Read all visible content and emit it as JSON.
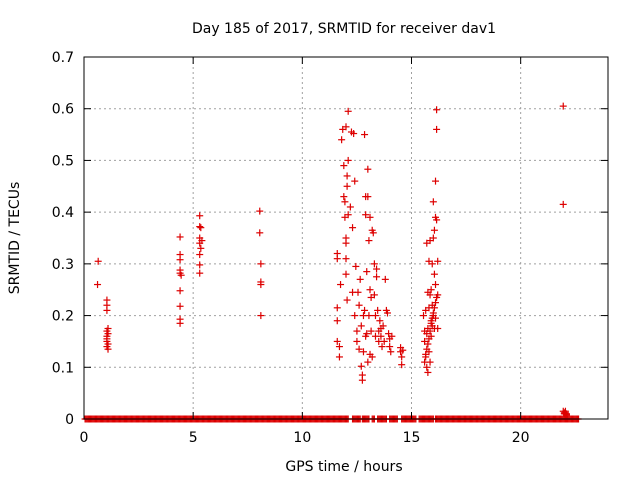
{
  "chart_data": {
    "type": "scatter",
    "title": "Day 185 of 2017, SRMTID for receiver dav1",
    "xlabel": "GPS time / hours",
    "ylabel": "SRMTID / TECUs",
    "xlim": [
      0,
      24
    ],
    "ylim": [
      0,
      0.7
    ],
    "xticks": [
      0,
      5,
      10,
      15,
      20
    ],
    "yticks": [
      0,
      0.1,
      0.2,
      0.3,
      0.4,
      0.5,
      0.6,
      0.7
    ],
    "xtick_labels": [
      "0",
      "5",
      "10",
      "15",
      "20"
    ],
    "ytick_labels": [
      "0",
      "0.1",
      "0.2",
      "0.3",
      "0.4",
      "0.5",
      "0.6",
      "0.7"
    ],
    "grid": true,
    "marker": "+",
    "color": "#dd0000",
    "baseline": {
      "y": 0,
      "x_start": 0.05,
      "x_end": 22.7
    },
    "series": [
      {
        "name": "SRMTID",
        "x": [
          0.65,
          0.62,
          1.05,
          1.05,
          1.05,
          1.05,
          1.05,
          1.05,
          1.05,
          1.05,
          1.1,
          1.1,
          1.1,
          1.1,
          4.4,
          4.4,
          4.4,
          4.4,
          4.4,
          4.4,
          4.4,
          4.4,
          4.4,
          4.45,
          5.3,
          5.3,
          5.3,
          5.3,
          5.3,
          5.3,
          5.3,
          5.35,
          5.35,
          5.4,
          8.05,
          8.05,
          8.1,
          8.1,
          8.1,
          8.1,
          11.6,
          11.6,
          11.6,
          11.6,
          11.6,
          11.7,
          11.7,
          11.75,
          11.8,
          11.85,
          11.9,
          11.9,
          11.95,
          11.95,
          12.0,
          12.0,
          12.0,
          12.0,
          12.0,
          12.05,
          12.05,
          12.05,
          12.1,
          12.1,
          12.1,
          12.2,
          12.25,
          12.3,
          12.3,
          12.35,
          12.4,
          12.4,
          12.45,
          12.5,
          12.5,
          12.55,
          12.6,
          12.6,
          12.65,
          12.7,
          12.7,
          12.75,
          12.75,
          12.8,
          12.8,
          12.85,
          12.85,
          12.9,
          12.9,
          12.9,
          12.95,
          12.95,
          13.0,
          13.0,
          13.0,
          13.05,
          13.05,
          13.1,
          13.1,
          13.1,
          13.15,
          13.15,
          13.2,
          13.2,
          13.25,
          13.3,
          13.3,
          13.35,
          13.35,
          13.4,
          13.4,
          13.45,
          13.5,
          13.5,
          13.55,
          13.6,
          13.6,
          13.65,
          13.7,
          13.75,
          13.8,
          13.85,
          13.9,
          13.95,
          14.0,
          14.0,
          14.05,
          14.1,
          14.5,
          14.5,
          14.55,
          14.55,
          14.6,
          15.55,
          15.6,
          15.6,
          15.65,
          15.65,
          15.7,
          15.7,
          15.7,
          15.75,
          15.75,
          15.75,
          15.8,
          15.8,
          15.8,
          15.85,
          15.85,
          15.85,
          15.9,
          15.9,
          15.9,
          15.95,
          15.95,
          15.95,
          16.0,
          16.0,
          16.0,
          16.05,
          16.05,
          16.05,
          16.1,
          16.1,
          16.1,
          16.1,
          16.15,
          16.15,
          16.15,
          16.2,
          16.2,
          16.2,
          15.6,
          15.65,
          15.7,
          15.75,
          15.8,
          15.85,
          15.9,
          15.95,
          16.0,
          16.05,
          16.1,
          16.15,
          21.95,
          21.95,
          21.95,
          22.0,
          22.0,
          22.05,
          22.05,
          22.1,
          22.1
        ],
        "y": [
          0.305,
          0.26,
          0.23,
          0.22,
          0.21,
          0.17,
          0.16,
          0.155,
          0.15,
          0.14,
          0.145,
          0.165,
          0.175,
          0.135,
          0.352,
          0.318,
          0.308,
          0.288,
          0.282,
          0.248,
          0.218,
          0.193,
          0.185,
          0.278,
          0.393,
          0.372,
          0.35,
          0.34,
          0.318,
          0.298,
          0.282,
          0.37,
          0.33,
          0.345,
          0.402,
          0.36,
          0.3,
          0.265,
          0.26,
          0.2,
          0.32,
          0.31,
          0.215,
          0.19,
          0.15,
          0.14,
          0.12,
          0.26,
          0.54,
          0.56,
          0.49,
          0.43,
          0.42,
          0.39,
          0.565,
          0.35,
          0.34,
          0.31,
          0.28,
          0.47,
          0.45,
          0.23,
          0.595,
          0.5,
          0.395,
          0.41,
          0.555,
          0.37,
          0.245,
          0.552,
          0.46,
          0.2,
          0.295,
          0.15,
          0.17,
          0.245,
          0.135,
          0.22,
          0.27,
          0.102,
          0.18,
          0.085,
          0.075,
          0.2,
          0.13,
          0.55,
          0.21,
          0.43,
          0.395,
          0.16,
          0.285,
          0.165,
          0.483,
          0.43,
          0.11,
          0.345,
          0.2,
          0.39,
          0.25,
          0.125,
          0.235,
          0.17,
          0.365,
          0.12,
          0.36,
          0.24,
          0.3,
          0.2,
          0.16,
          0.29,
          0.275,
          0.21,
          0.17,
          0.15,
          0.19,
          0.175,
          0.16,
          0.14,
          0.18,
          0.15,
          0.27,
          0.21,
          0.205,
          0.165,
          0.14,
          0.155,
          0.13,
          0.16,
          0.138,
          0.13,
          0.12,
          0.105,
          0.133,
          0.2,
          0.17,
          0.15,
          0.21,
          0.12,
          0.1,
          0.165,
          0.34,
          0.09,
          0.245,
          0.175,
          0.305,
          0.13,
          0.215,
          0.24,
          0.345,
          0.11,
          0.19,
          0.25,
          0.16,
          0.3,
          0.22,
          0.18,
          0.42,
          0.35,
          0.2,
          0.28,
          0.175,
          0.365,
          0.39,
          0.26,
          0.46,
          0.195,
          0.598,
          0.56,
          0.385,
          0.305,
          0.24,
          0.175,
          0.11,
          0.125,
          0.135,
          0.145,
          0.155,
          0.17,
          0.185,
          0.195,
          0.205,
          0.215,
          0.225,
          0.235,
          0.605,
          0.415,
          0.015,
          0.012,
          0.01,
          0.015,
          0.012,
          0.01,
          0.008
        ]
      }
    ]
  }
}
